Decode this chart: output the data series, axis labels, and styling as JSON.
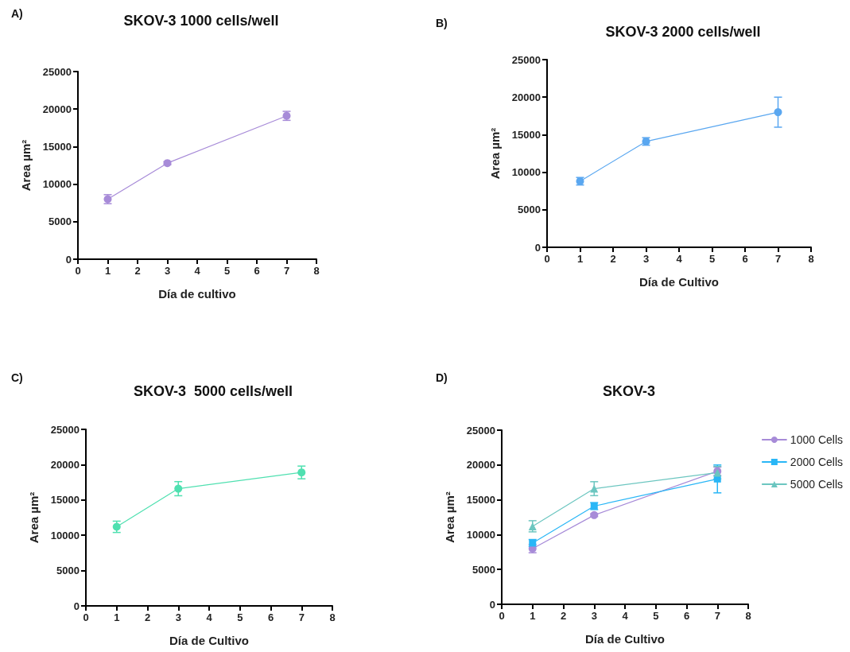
{
  "chart_data": [
    {
      "type": "line",
      "title": "SKOV-3 1000 cells/well",
      "xlabel": "Día de cultivo",
      "ylabel": "Area µm²",
      "annotations": [
        "A)"
      ],
      "x": [
        1,
        3,
        7
      ],
      "xlim": [
        0,
        8
      ],
      "xticks": [
        0,
        1,
        2,
        3,
        4,
        5,
        6,
        7,
        8
      ],
      "ylim": [
        0,
        25000
      ],
      "yticks": [
        0,
        5000,
        10000,
        15000,
        20000,
        25000
      ],
      "grid": false,
      "legend": false,
      "marker": "circle",
      "series": [
        {
          "color": "#a78bd8",
          "values": [
            8000,
            12800,
            19100
          ],
          "errors": [
            600,
            200,
            600
          ]
        }
      ]
    },
    {
      "type": "line",
      "title": "SKOV-3 2000 cells/well",
      "xlabel": "Día de Cultivo",
      "ylabel": "Area µm²",
      "annotations": [
        "B)"
      ],
      "x": [
        1,
        3,
        7
      ],
      "xlim": [
        0,
        8
      ],
      "xticks": [
        0,
        1,
        2,
        3,
        4,
        5,
        6,
        7,
        8
      ],
      "ylim": [
        0,
        25000
      ],
      "yticks": [
        0,
        5000,
        10000,
        15000,
        20000,
        25000
      ],
      "grid": false,
      "legend": false,
      "marker": "circle",
      "series": [
        {
          "color": "#5aa7f0",
          "values": [
            8800,
            14100,
            18000
          ],
          "errors": [
            500,
            500,
            2000
          ]
        }
      ]
    },
    {
      "type": "line",
      "title": "SKOV-3  5000 cells/well",
      "xlabel": "Día de Cultivo",
      "ylabel": "Area µm²",
      "annotations": [
        "C)"
      ],
      "x": [
        1,
        3,
        7
      ],
      "xlim": [
        0,
        8
      ],
      "xticks": [
        0,
        1,
        2,
        3,
        4,
        5,
        6,
        7,
        8
      ],
      "ylim": [
        0,
        25000
      ],
      "yticks": [
        0,
        5000,
        10000,
        15000,
        20000,
        25000
      ],
      "grid": false,
      "legend": false,
      "marker": "circle",
      "series": [
        {
          "color": "#4fe0b0",
          "values": [
            11200,
            16600,
            18900
          ],
          "errors": [
            800,
            1000,
            900
          ]
        }
      ]
    },
    {
      "type": "line",
      "title": "SKOV-3",
      "xlabel": "Día de Cultivo",
      "ylabel": "Area µm²",
      "annotations": [
        "D)"
      ],
      "x": [
        1,
        3,
        7
      ],
      "xlim": [
        0,
        8
      ],
      "xticks": [
        0,
        1,
        2,
        3,
        4,
        5,
        6,
        7,
        8
      ],
      "ylim": [
        0,
        25000
      ],
      "yticks": [
        0,
        5000,
        10000,
        15000,
        20000,
        25000
      ],
      "grid": false,
      "legend": "right",
      "series": [
        {
          "name": "1000 Cells",
          "color": "#a78bd8",
          "marker": "circle",
          "values": [
            8000,
            12800,
            19100
          ],
          "errors": [
            600,
            200,
            600
          ]
        },
        {
          "name": "2000 Cells",
          "color": "#29b6f6",
          "marker": "square",
          "values": [
            8800,
            14100,
            18000
          ],
          "errors": [
            500,
            500,
            2000
          ]
        },
        {
          "name": "5000 Cells",
          "color": "#6cc6c0",
          "marker": "triangle",
          "values": [
            11200,
            16600,
            18900
          ],
          "errors": [
            800,
            1000,
            900
          ]
        }
      ]
    }
  ]
}
